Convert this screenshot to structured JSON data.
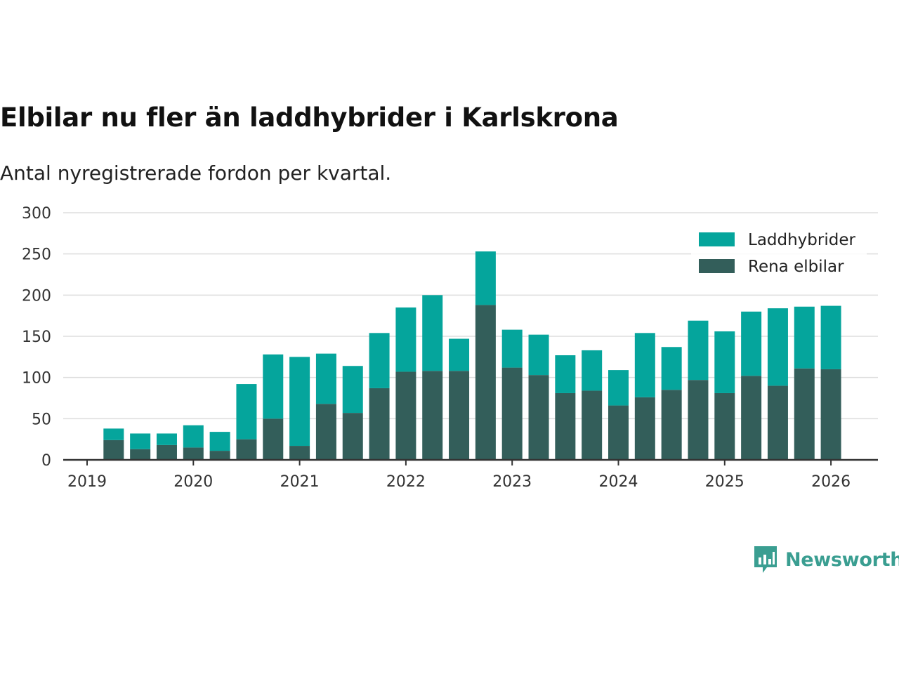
{
  "title": "Elbilar nu fler än laddhybrider i Karlskrona",
  "subtitle": "Antal nyregistrerade fordon per kvartal.",
  "brand": "Newsworthy",
  "colors": {
    "laddhybrider": "#05a59c",
    "rena": "#335e5a",
    "grid": "#dddddd",
    "axis": "#333333",
    "brand": "#3a9e91"
  },
  "chart_data": {
    "type": "bar",
    "stacked": true,
    "title": "Elbilar nu fler än laddhybrider i Karlskrona",
    "xlabel": "",
    "ylabel": "",
    "ylim": [
      0,
      300
    ],
    "yticks": [
      0,
      50,
      100,
      150,
      200,
      250,
      300
    ],
    "xlim": [
      2019.0,
      2026.2
    ],
    "xticks": [
      2019,
      2020,
      2021,
      2022,
      2023,
      2024,
      2025,
      2026
    ],
    "legend_position": "top-right",
    "categories": [
      "2019 Q2",
      "2019 Q3",
      "2019 Q4",
      "2020 Q1",
      "2020 Q2",
      "2020 Q3",
      "2020 Q4",
      "2021 Q1",
      "2021 Q2",
      "2021 Q3",
      "2021 Q4",
      "2022 Q1",
      "2022 Q2",
      "2022 Q3",
      "2022 Q4",
      "2023 Q1",
      "2023 Q2",
      "2023 Q3",
      "2023 Q4",
      "2024 Q1",
      "2024 Q2",
      "2024 Q3",
      "2024 Q4",
      "2025 Q1",
      "2025 Q2",
      "2025 Q3",
      "2025 Q4",
      "2026 Q1"
    ],
    "x": [
      2019.25,
      2019.5,
      2019.75,
      2020.0,
      2020.25,
      2020.5,
      2020.75,
      2021.0,
      2021.25,
      2021.5,
      2021.75,
      2022.0,
      2022.25,
      2022.5,
      2022.75,
      2023.0,
      2023.25,
      2023.5,
      2023.75,
      2024.0,
      2024.25,
      2024.5,
      2024.75,
      2025.0,
      2025.25,
      2025.5,
      2025.75,
      2026.0
    ],
    "series": [
      {
        "name": "Rena elbilar",
        "values": [
          24,
          13,
          18,
          15,
          11,
          25,
          50,
          17,
          68,
          57,
          87,
          107,
          108,
          108,
          188,
          112,
          103,
          81,
          84,
          66,
          76,
          85,
          97,
          81,
          102,
          90,
          111,
          110
        ]
      },
      {
        "name": "Laddhybrider",
        "values": [
          14,
          19,
          14,
          27,
          23,
          67,
          78,
          108,
          61,
          57,
          67,
          78,
          92,
          39,
          65,
          46,
          49,
          46,
          49,
          43,
          78,
          52,
          72,
          75,
          78,
          94,
          75,
          77
        ]
      }
    ]
  }
}
